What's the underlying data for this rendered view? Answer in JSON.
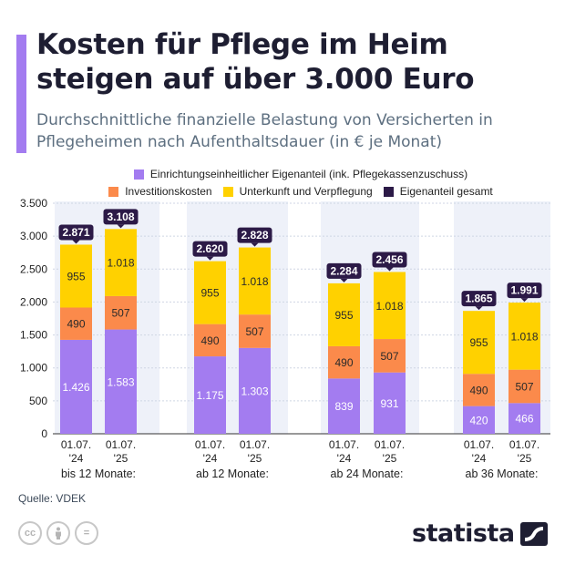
{
  "header": {
    "title": "Kosten für Pflege im Heim steigen auf über 3.000 Euro",
    "subtitle": "Durchschnittliche finanzielle Belastung von Versicherten in Pflegeheimen nach Aufenthaltsdauer (in € je Monat)"
  },
  "footer": {
    "source": "Quelle: VDEK",
    "brand": "statista"
  },
  "icons": [
    "cc-icon",
    "by-person-icon",
    "nd-equals-icon",
    "statista-logo-icon"
  ],
  "colors": {
    "accent": "#a37cf0",
    "eigenanteil": "#a37cf0",
    "investition": "#fb8a4b",
    "unterkunft": "#ffd100",
    "gesamt": "#2c1a47",
    "group_bg": "#eef1f9",
    "text_dark": "#1e1e32"
  },
  "chart_data": {
    "type": "bar",
    "stacked": true,
    "groups": [
      "bis 12 Monate:",
      "ab 12 Monate:",
      "ab 24 Monate:",
      "ab 36 Monate:"
    ],
    "categories": [
      "01.07.\n'24",
      "01.07.\n'25",
      "01.07.\n'24",
      "01.07.\n'25",
      "01.07.\n'24",
      "01.07.\n'25",
      "01.07.\n'24",
      "01.07.\n'25"
    ],
    "category_lines": [
      [
        "01.07.",
        "'24"
      ],
      [
        "01.07.",
        "'25"
      ]
    ],
    "series": [
      {
        "name": "Einrichtungseinheitlicher Eigenanteil (ink. Pflegekassenzuschuss)",
        "color": "#a37cf0",
        "values": [
          1426,
          1583,
          1175,
          1303,
          839,
          931,
          420,
          466
        ],
        "labels": [
          "1.426",
          "1.583",
          "1.175",
          "1.303",
          "839",
          "931",
          "420",
          "466"
        ]
      },
      {
        "name": "Investitionskosten",
        "color": "#fb8a4b",
        "values": [
          490,
          507,
          490,
          507,
          490,
          507,
          490,
          507
        ],
        "labels": [
          "490",
          "507",
          "490",
          "507",
          "490",
          "507",
          "490",
          "507"
        ]
      },
      {
        "name": "Unterkunft und Verpflegung",
        "color": "#ffd100",
        "values": [
          955,
          1018,
          955,
          1018,
          955,
          1018,
          955,
          1018
        ],
        "labels": [
          "955",
          "1.018",
          "955",
          "1.018",
          "955",
          "1.018",
          "955",
          "1.018"
        ]
      }
    ],
    "totals": {
      "name": "Eigenanteil gesamt",
      "color": "#2c1a47",
      "values": [
        2871,
        3108,
        2620,
        2828,
        2284,
        2456,
        1865,
        1991
      ],
      "labels": [
        "2.871",
        "3.108",
        "2.620",
        "2.828",
        "2.284",
        "2.456",
        "1.865",
        "1.991"
      ]
    },
    "ylim": [
      0,
      3500
    ],
    "yticks": [
      0,
      500,
      1000,
      1500,
      2000,
      2500,
      3000,
      3500
    ],
    "ytick_labels": [
      "0",
      "500",
      "1.000",
      "1.500",
      "2.000",
      "2.500",
      "3.000",
      "3.500"
    ],
    "xlabel": "",
    "ylabel": "",
    "legend": "top",
    "grid": true
  }
}
